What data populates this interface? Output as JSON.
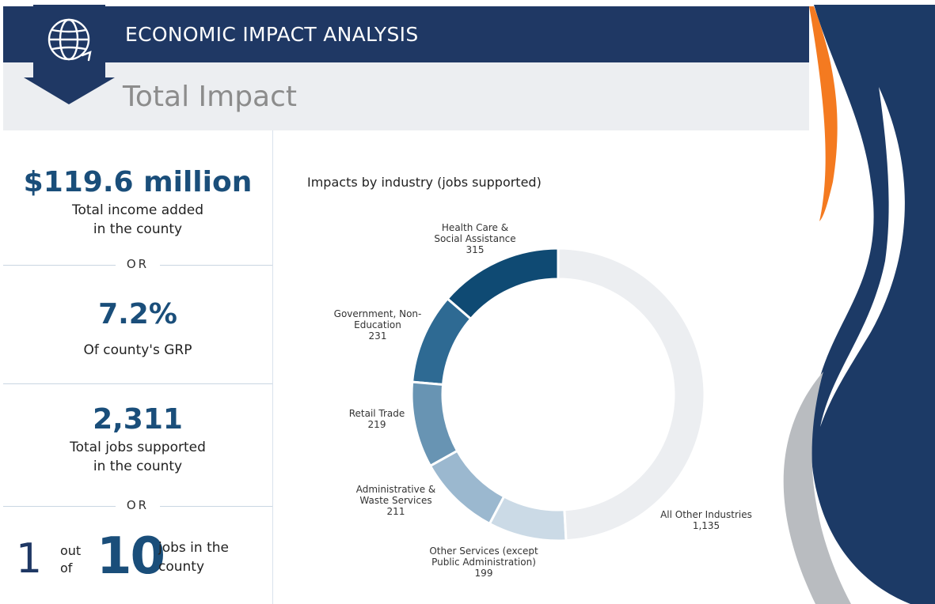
{
  "header": {
    "title": "ECONOMIC IMPACT ANALYSIS",
    "subtitle": "Total Impact"
  },
  "icons": {
    "badge": "globe-icon"
  },
  "stats": {
    "income_value": "$119.6 million",
    "income_label_1": "Total income added",
    "income_label_2": "in the county",
    "or_1": "OR",
    "grp_value": "7.2%",
    "grp_label": "Of county's GRP",
    "jobs_value": "2,311",
    "jobs_label_1": "Total jobs supported",
    "jobs_label_2": "in the county",
    "or_2": "OR",
    "ratio_num": "1",
    "ratio_out": "out",
    "ratio_of": "of",
    "ratio_den": "10",
    "ratio_label_1": "jobs in the",
    "ratio_label_2": "county"
  },
  "colors": {
    "header": "#1f3864",
    "accent_dark": "#1a4e7a",
    "orange": "#f47a20",
    "navy": "#1c3a66",
    "grey": "#b9bcc0"
  },
  "chart_data": {
    "type": "pie",
    "title": "Impacts by industry (jobs supported)",
    "slices": [
      {
        "label_lines": [
          "Health Care &",
          "Social Assistance"
        ],
        "value": 315,
        "value_label": "315",
        "color": "#0f4a73"
      },
      {
        "label_lines": [
          "Government, Non-",
          "Education"
        ],
        "value": 231,
        "value_label": "231",
        "color": "#2e6a93"
      },
      {
        "label_lines": [
          "Retail Trade"
        ],
        "value": 219,
        "value_label": "219",
        "color": "#6894b3"
      },
      {
        "label_lines": [
          "Administrative &",
          "Waste Services"
        ],
        "value": 211,
        "value_label": "211",
        "color": "#9bb8cf"
      },
      {
        "label_lines": [
          "Other Services (except",
          "Public Administration)"
        ],
        "value": 199,
        "value_label": "199",
        "color": "#cbdae6"
      },
      {
        "label_lines": [
          "All Other Industries"
        ],
        "value": 1135,
        "value_label": "1,135",
        "color": "#eceef1"
      }
    ]
  }
}
